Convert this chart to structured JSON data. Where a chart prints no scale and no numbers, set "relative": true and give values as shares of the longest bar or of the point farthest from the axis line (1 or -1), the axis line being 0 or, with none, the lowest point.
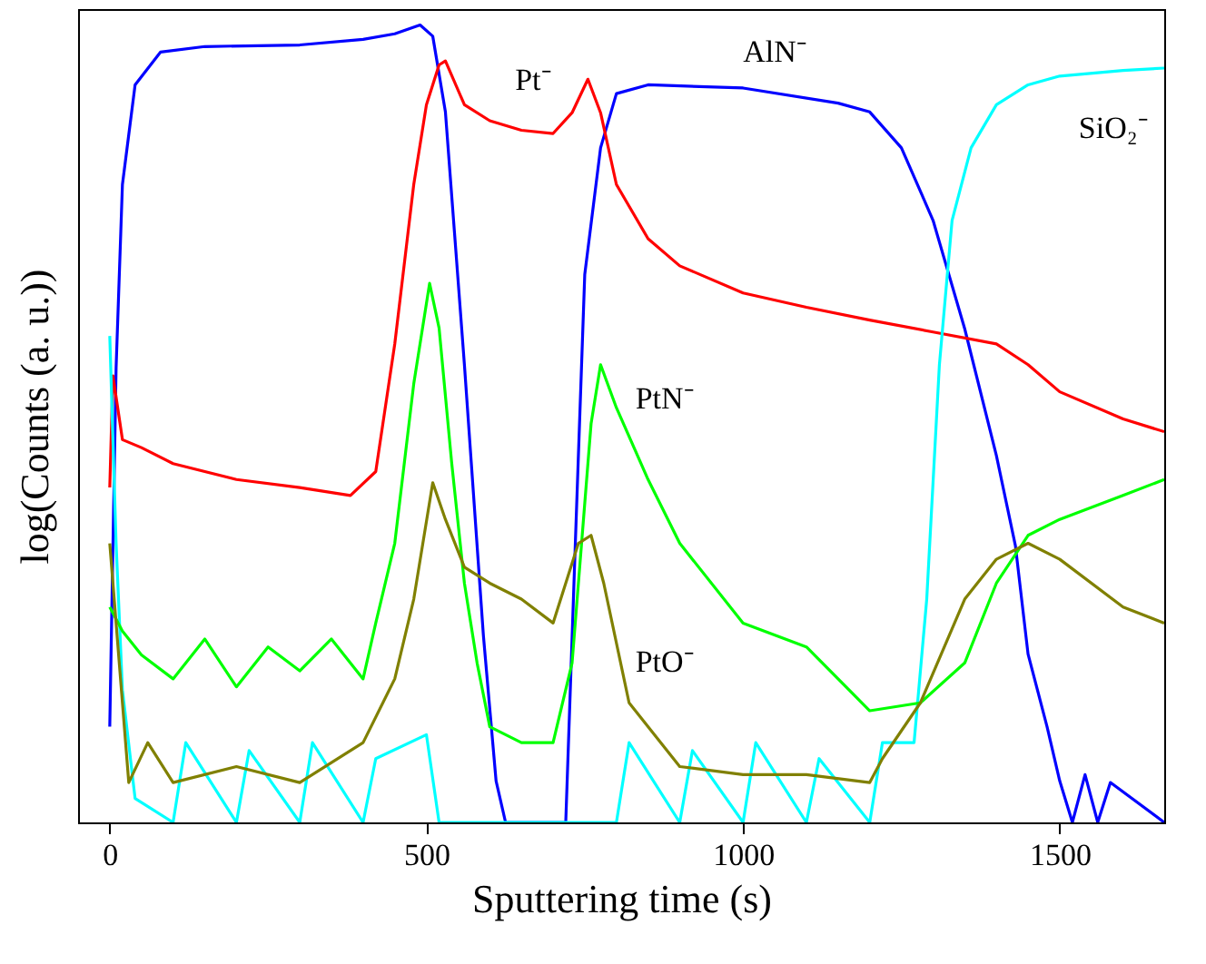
{
  "chart_data": {
    "type": "line",
    "relative": true,
    "xlabel": "Sputtering time (s)",
    "ylabel": "log(Counts (a. u.))",
    "xlim": [
      -50,
      1665
    ],
    "xticks": [
      0,
      500,
      1000,
      1500
    ],
    "grid": false,
    "legend": false,
    "series": [
      {
        "name": "AlN⁻",
        "color": "#0000ff",
        "x": [
          0,
          10,
          20,
          40,
          80,
          150,
          300,
          400,
          450,
          490,
          510,
          530,
          560,
          590,
          610,
          625,
          700,
          720,
          735,
          750,
          775,
          800,
          850,
          1000,
          1150,
          1200,
          1250,
          1300,
          1350,
          1400,
          1430,
          1450,
          1480,
          1500,
          1520,
          1540,
          1560,
          1580,
          1665
        ],
        "values": [
          0.12,
          0.57,
          0.8,
          0.925,
          0.966,
          0.973,
          0.975,
          0.982,
          0.989,
          1.0,
          0.986,
          0.891,
          0.574,
          0.234,
          0.052,
          0,
          0,
          0,
          0.347,
          0.687,
          0.846,
          0.914,
          0.925,
          0.921,
          0.902,
          0.891,
          0.846,
          0.755,
          0.619,
          0.46,
          0.347,
          0.211,
          0.12,
          0.052,
          0,
          0.06,
          0,
          0.05,
          0
        ]
      },
      {
        "name": "Pt⁻",
        "color": "#ff0000",
        "x": [
          0,
          5,
          20,
          50,
          100,
          200,
          300,
          380,
          420,
          450,
          480,
          500,
          520,
          530,
          560,
          600,
          650,
          700,
          730,
          755,
          775,
          800,
          850,
          900,
          1000,
          1100,
          1200,
          1300,
          1400,
          1450,
          1500,
          1600,
          1665
        ],
        "values": [
          0.42,
          0.56,
          0.48,
          0.47,
          0.45,
          0.43,
          0.42,
          0.41,
          0.44,
          0.6,
          0.8,
          0.9,
          0.95,
          0.955,
          0.9,
          0.88,
          0.868,
          0.864,
          0.89,
          0.932,
          0.89,
          0.8,
          0.732,
          0.698,
          0.664,
          0.646,
          0.63,
          0.615,
          0.6,
          0.574,
          0.54,
          0.506,
          0.49
        ]
      },
      {
        "name": "SiO₂⁻",
        "color": "#00ffff",
        "x": [
          0,
          10,
          20,
          40,
          100,
          120,
          200,
          220,
          300,
          320,
          400,
          420,
          500,
          520,
          600,
          800,
          820,
          900,
          920,
          1000,
          1020,
          1100,
          1120,
          1200,
          1220,
          1270,
          1290,
          1310,
          1330,
          1360,
          1400,
          1450,
          1500,
          1600,
          1665
        ],
        "values": [
          0.61,
          0.35,
          0.166,
          0.03,
          0,
          0.1,
          0,
          0.09,
          0,
          0.1,
          0,
          0.08,
          0.11,
          0,
          0,
          0,
          0.1,
          0,
          0.09,
          0,
          0.1,
          0,
          0.08,
          0,
          0.1,
          0.1,
          0.28,
          0.574,
          0.755,
          0.846,
          0.9,
          0.925,
          0.936,
          0.943,
          0.946
        ]
      },
      {
        "name": "PtN⁻",
        "color": "#00ff00",
        "x": [
          0,
          20,
          50,
          100,
          150,
          200,
          250,
          300,
          350,
          400,
          420,
          450,
          480,
          505,
          520,
          540,
          560,
          580,
          600,
          650,
          700,
          730,
          760,
          775,
          800,
          850,
          900,
          1000,
          1100,
          1200,
          1280,
          1350,
          1400,
          1450,
          1500,
          1600,
          1665
        ],
        "values": [
          0.27,
          0.24,
          0.21,
          0.18,
          0.23,
          0.17,
          0.22,
          0.19,
          0.23,
          0.18,
          0.25,
          0.35,
          0.55,
          0.676,
          0.62,
          0.45,
          0.3,
          0.2,
          0.12,
          0.1,
          0.1,
          0.2,
          0.5,
          0.574,
          0.52,
          0.43,
          0.35,
          0.25,
          0.22,
          0.14,
          0.15,
          0.2,
          0.3,
          0.36,
          0.38,
          0.41,
          0.43
        ]
      },
      {
        "name": "PtO⁻",
        "color": "#808000",
        "x": [
          0,
          10,
          30,
          60,
          100,
          200,
          300,
          400,
          450,
          480,
          510,
          530,
          560,
          600,
          650,
          700,
          740,
          760,
          780,
          820,
          900,
          1000,
          1100,
          1200,
          1220,
          1280,
          1350,
          1400,
          1450,
          1500,
          1600,
          1665
        ],
        "values": [
          0.35,
          0.25,
          0.05,
          0.1,
          0.05,
          0.07,
          0.05,
          0.1,
          0.18,
          0.28,
          0.426,
          0.38,
          0.32,
          0.3,
          0.28,
          0.25,
          0.35,
          0.36,
          0.3,
          0.15,
          0.07,
          0.06,
          0.06,
          0.05,
          0.08,
          0.15,
          0.28,
          0.33,
          0.35,
          0.33,
          0.27,
          0.25
        ]
      }
    ]
  }
}
